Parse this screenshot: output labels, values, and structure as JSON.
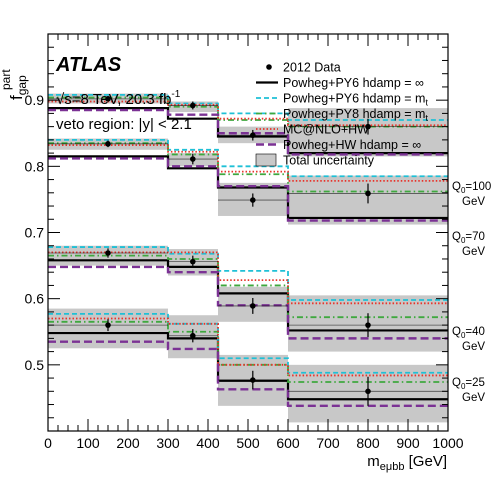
{
  "chart_data": {
    "type": "step",
    "atlas_label": "ATLAS",
    "energy_label": "√s=8 TeV, 20.3 fb",
    "energy_sup": "-1",
    "region_label": "veto region: |y| < 2.1",
    "xlabel": "m",
    "xlabel_sub": "eμbb",
    "xlabel_unit": " [GeV]",
    "ylabel": "f",
    "ylabel_sub": "gap",
    "ylabel_sup": "part",
    "xlim": [
      0,
      1000
    ],
    "ylim": [
      0.4,
      1.0
    ],
    "x_ticks": [
      0,
      100,
      200,
      300,
      400,
      500,
      600,
      700,
      800,
      900,
      1000
    ],
    "x_tick_labels": [
      "0",
      "100",
      "200",
      "300",
      "400",
      "500",
      "600",
      "700",
      "800",
      "900",
      "1000"
    ],
    "y_ticks": [
      0.5,
      0.6,
      0.7,
      0.8,
      0.9
    ],
    "y_tick_labels": [
      "0.5",
      "0.6",
      "0.7",
      "0.8",
      "0.9"
    ],
    "bin_edges": [
      0,
      300,
      425,
      600,
      1000
    ],
    "legend": [
      {
        "label": "2012 Data",
        "sub": "",
        "style": "data"
      },
      {
        "label": "Powheg+PY6 hdamp = ∞",
        "sub": "",
        "style": "solid",
        "color": "#000000"
      },
      {
        "label": "Powheg+PY6 hdamp = m",
        "sub": "t",
        "style": "dashed",
        "color": "#1fc0d6"
      },
      {
        "label": "Powheg+PY8 hdamp = m",
        "sub": "t",
        "style": "dashdot",
        "color": "#3fa83f"
      },
      {
        "label": "MC@NLO+HW",
        "sub": "",
        "style": "dotted",
        "color": "#e8332a"
      },
      {
        "label": "Powheg+HW hdamp = ∞",
        "sub": "",
        "style": "longdash",
        "color": "#7b3294"
      },
      {
        "label": "Total uncertainty",
        "sub": "",
        "style": "band",
        "color": "#c8c8c8"
      }
    ],
    "groups": [
      {
        "q0": "Q",
        "q0_sub": "0",
        "q0_value": "=100",
        "unit": "GeV",
        "data": {
          "x": [
            150,
            362,
            512,
            800
          ],
          "y": [
            0.902,
            0.892,
            0.847,
            0.86
          ],
          "err": [
            0.004,
            0.006,
            0.008,
            0.012
          ]
        },
        "band": [
          [
            0.895,
            0.91
          ],
          [
            0.882,
            0.898
          ],
          [
            0.835,
            0.86
          ],
          [
            0.815,
            0.888
          ]
        ],
        "series": [
          {
            "name": "Powheg+PY6 hdamp = ∞",
            "values": [
              0.888,
              0.872,
              0.845,
              0.82
            ]
          },
          {
            "name": "Powheg+PY6 hdamp = m",
            "values": [
              0.908,
              0.895,
              0.88,
              0.87
            ]
          },
          {
            "name": "Powheg+PY8 hdamp = m",
            "values": [
              0.904,
              0.89,
              0.87,
              0.86
            ]
          },
          {
            "name": "MC@NLO+HW",
            "values": [
              0.898,
              0.893,
              0.872,
              0.862
            ]
          },
          {
            "name": "Powheg+HW hdamp = ∞",
            "values": [
              0.885,
              0.878,
              0.85,
              0.818
            ]
          }
        ]
      },
      {
        "q0": "Q",
        "q0_sub": "0",
        "q0_value": "=70",
        "unit": "GeV",
        "data": {
          "x": [
            150,
            362,
            512,
            800
          ],
          "y": [
            0.834,
            0.811,
            0.749,
            0.759
          ],
          "err": [
            0.005,
            0.008,
            0.01,
            0.015
          ]
        },
        "band": [
          [
            0.825,
            0.842
          ],
          [
            0.8,
            0.82
          ],
          [
            0.725,
            0.775
          ],
          [
            0.712,
            0.786
          ]
        ],
        "series": [
          {
            "name": "Powheg+PY6 hdamp = ∞",
            "values": [
              0.815,
              0.797,
              0.768,
              0.722
            ]
          },
          {
            "name": "Powheg+PY6 hdamp = m",
            "values": [
              0.84,
              0.825,
              0.8,
              0.785
            ]
          },
          {
            "name": "Powheg+PY8 hdamp = m",
            "values": [
              0.835,
              0.818,
              0.788,
              0.762
            ]
          },
          {
            "name": "MC@NLO+HW",
            "values": [
              0.832,
              0.822,
              0.792,
              0.778
            ]
          },
          {
            "name": "Powheg+HW hdamp = ∞",
            "values": [
              0.812,
              0.8,
              0.77,
              0.718
            ]
          }
        ]
      },
      {
        "q0": "Q",
        "q0_sub": "0",
        "q0_value": "=40",
        "unit": "GeV",
        "data": {
          "x": [
            150,
            362,
            512,
            800
          ],
          "y": [
            0.669,
            0.656,
            0.589,
            0.56
          ],
          "err": [
            0.007,
            0.009,
            0.012,
            0.018
          ]
        },
        "band": [
          [
            0.65,
            0.68
          ],
          [
            0.635,
            0.675
          ],
          [
            0.565,
            0.618
          ],
          [
            0.52,
            0.605
          ]
        ],
        "series": [
          {
            "name": "Powheg+PY6 hdamp = ∞",
            "values": [
              0.658,
              0.648,
              0.608,
              0.552
            ]
          },
          {
            "name": "Powheg+PY6 hdamp = m",
            "values": [
              0.678,
              0.668,
              0.642,
              0.598
            ]
          },
          {
            "name": "Powheg+PY8 hdamp = m",
            "values": [
              0.665,
              0.66,
              0.62,
              0.572
            ]
          },
          {
            "name": "MC@NLO+HW",
            "values": [
              0.67,
              0.67,
              0.628,
              0.593
            ]
          },
          {
            "name": "Powheg+HW hdamp = ∞",
            "values": [
              0.648,
              0.64,
              0.59,
              0.54
            ]
          }
        ]
      },
      {
        "q0": "Q",
        "q0_sub": "0",
        "q0_value": "=25",
        "unit": "GeV",
        "data": {
          "x": [
            150,
            362,
            512,
            800
          ],
          "y": [
            0.56,
            0.544,
            0.477,
            0.46
          ],
          "err": [
            0.009,
            0.01,
            0.014,
            0.022
          ]
        },
        "band": [
          [
            0.525,
            0.585
          ],
          [
            0.51,
            0.575
          ],
          [
            0.438,
            0.515
          ],
          [
            0.413,
            0.5
          ]
        ],
        "series": [
          {
            "name": "Powheg+PY6 hdamp = ∞",
            "values": [
              0.548,
              0.54,
              0.476,
              0.448
            ]
          },
          {
            "name": "Powheg+PY6 hdamp = m",
            "values": [
              0.577,
              0.562,
              0.51,
              0.488
            ]
          },
          {
            "name": "Powheg+PY8 hdamp = m",
            "values": [
              0.565,
              0.55,
              0.5,
              0.474
            ]
          },
          {
            "name": "MC@NLO+HW",
            "values": [
              0.57,
              0.562,
              0.5,
              0.484
            ]
          },
          {
            "name": "Powheg+HW hdamp = ∞",
            "values": [
              0.535,
              0.524,
              0.463,
              0.438
            ]
          }
        ]
      }
    ]
  }
}
